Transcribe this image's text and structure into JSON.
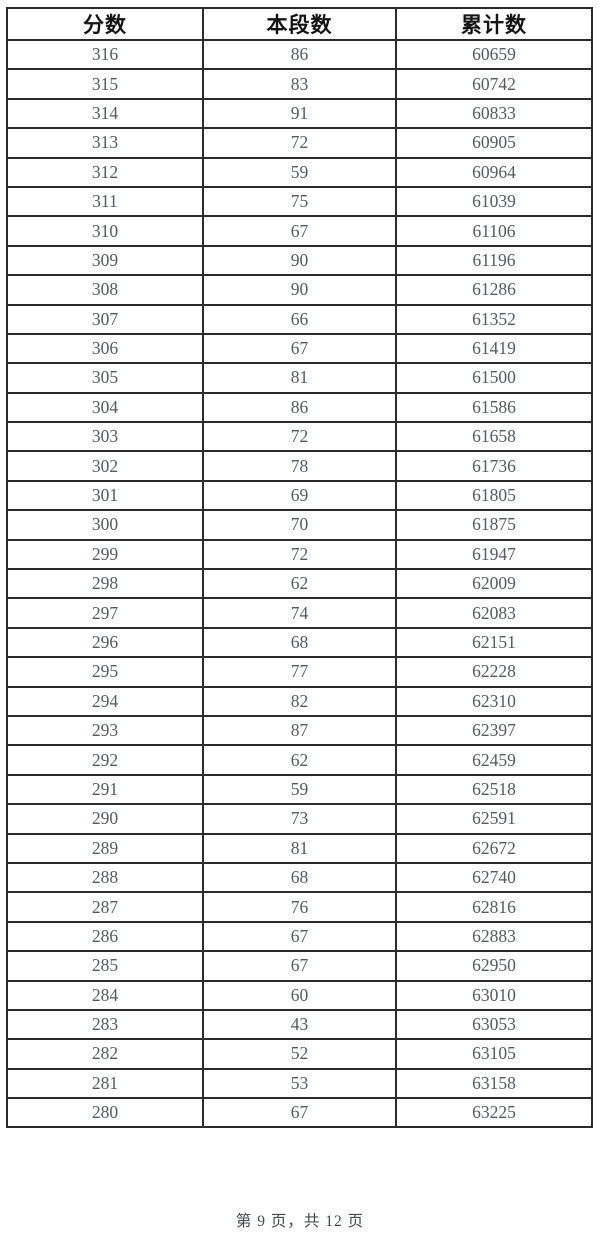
{
  "page": {
    "footer": "第 9 页，共 12 页"
  },
  "table": {
    "columns": [
      "分数",
      "本段数",
      "累计数"
    ],
    "rows": [
      [
        316,
        86,
        60659
      ],
      [
        315,
        83,
        60742
      ],
      [
        314,
        91,
        60833
      ],
      [
        313,
        72,
        60905
      ],
      [
        312,
        59,
        60964
      ],
      [
        311,
        75,
        61039
      ],
      [
        310,
        67,
        61106
      ],
      [
        309,
        90,
        61196
      ],
      [
        308,
        90,
        61286
      ],
      [
        307,
        66,
        61352
      ],
      [
        306,
        67,
        61419
      ],
      [
        305,
        81,
        61500
      ],
      [
        304,
        86,
        61586
      ],
      [
        303,
        72,
        61658
      ],
      [
        302,
        78,
        61736
      ],
      [
        301,
        69,
        61805
      ],
      [
        300,
        70,
        61875
      ],
      [
        299,
        72,
        61947
      ],
      [
        298,
        62,
        62009
      ],
      [
        297,
        74,
        62083
      ],
      [
        296,
        68,
        62151
      ],
      [
        295,
        77,
        62228
      ],
      [
        294,
        82,
        62310
      ],
      [
        293,
        87,
        62397
      ],
      [
        292,
        62,
        62459
      ],
      [
        291,
        59,
        62518
      ],
      [
        290,
        73,
        62591
      ],
      [
        289,
        81,
        62672
      ],
      [
        288,
        68,
        62740
      ],
      [
        287,
        76,
        62816
      ],
      [
        286,
        67,
        62883
      ],
      [
        285,
        67,
        62950
      ],
      [
        284,
        60,
        63010
      ],
      [
        283,
        43,
        63053
      ],
      [
        282,
        52,
        63105
      ],
      [
        281,
        53,
        63158
      ],
      [
        280,
        67,
        63225
      ]
    ]
  },
  "colors": {
    "border": "#2b2b2b",
    "header_text": "#141414",
    "data_text": "#565b60",
    "footer_text": "#45494d",
    "background": "#ffffff"
  }
}
